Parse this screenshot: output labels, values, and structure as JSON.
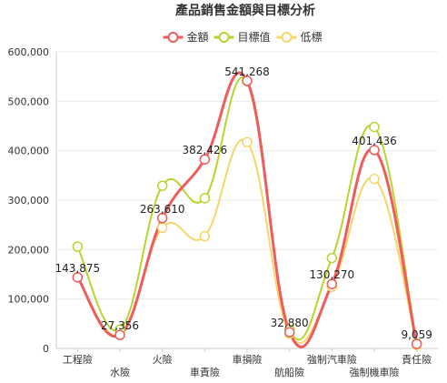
{
  "chart_data": {
    "type": "line",
    "title": "產品銷售金額與目標分析",
    "xlabel": "",
    "ylabel": "",
    "ylim": [
      0,
      600000
    ],
    "yticks": [
      "0",
      "100,000",
      "200,000",
      "300,000",
      "400,000",
      "500,000",
      "600,000"
    ],
    "ytick_values": [
      0,
      100000,
      200000,
      300000,
      400000,
      500000,
      600000
    ],
    "categories": [
      "工程險",
      "水險",
      "火險",
      "車責險",
      "車損險",
      "航船險",
      "強制汽車險",
      "強制機車險",
      "責任險"
    ],
    "legend_position": "top-center",
    "grid": "horizontal",
    "series": [
      {
        "name": "金額",
        "color": "#f05b5b",
        "values": [
          143875,
          27356,
          263610,
          382426,
          541268,
          32880,
          130270,
          401436,
          9059
        ],
        "labels": [
          "143,875",
          "27,356",
          "263,610",
          "382,426",
          "541,268",
          "32,880",
          "130,270",
          "401,436",
          "9,059"
        ]
      },
      {
        "name": "目標值",
        "color": "#b8d430",
        "values": [
          206000,
          38000,
          329000,
          304000,
          541000,
          38000,
          183000,
          448000,
          10000
        ]
      },
      {
        "name": "低標",
        "color": "#f5d66b",
        "values": [
          144000,
          28000,
          244000,
          227000,
          417000,
          30000,
          125000,
          343000,
          7000
        ]
      }
    ]
  }
}
